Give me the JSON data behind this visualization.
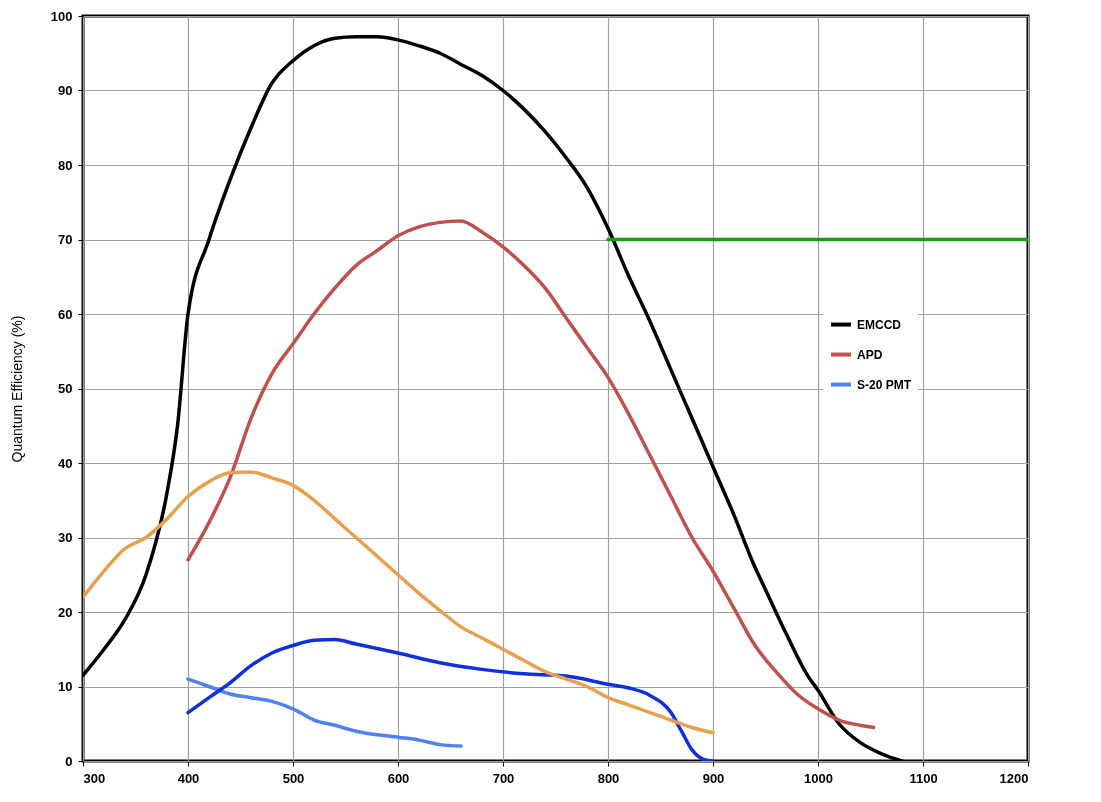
{
  "chart_data": {
    "type": "line",
    "ylabel": "Quantum Efficiency (%)",
    "xlim": [
      300,
      1200
    ],
    "xticks": [
      300,
      400,
      500,
      600,
      700,
      800,
      900,
      1000,
      1100,
      1200
    ],
    "ylim": [
      0,
      100
    ],
    "yticks": [
      0,
      10,
      20,
      30,
      40,
      50,
      60,
      70,
      80,
      90,
      100
    ],
    "grid": true,
    "legend": "right",
    "series": [
      {
        "name": "EMCCD",
        "color": "#000000",
        "x": [
          300,
          320,
          340,
          360,
          380,
          390,
          400,
          420,
          440,
          460,
          480,
          500,
          520,
          540,
          560,
          580,
          600,
          620,
          640,
          660,
          680,
          700,
          720,
          740,
          760,
          780,
          800,
          820,
          840,
          860,
          880,
          900,
          920,
          940,
          950,
          970,
          990,
          1000,
          1020,
          1040,
          1060,
          1080
        ],
        "values": [
          11.5,
          15,
          19,
          25,
          36,
          45,
          60,
          70,
          78,
          85,
          91,
          94,
          96,
          97,
          97.2,
          97.2,
          96.8,
          96,
          95,
          93.5,
          92,
          90,
          87.5,
          84.5,
          81,
          77,
          71.5,
          65,
          59,
          52.5,
          46,
          39.5,
          33,
          26,
          23,
          17,
          11.5,
          9.5,
          5,
          2.5,
          1,
          0
        ]
      },
      {
        "name": "APD",
        "color": "#c0504d",
        "x": [
          400,
          420,
          440,
          460,
          480,
          500,
          520,
          540,
          560,
          580,
          600,
          620,
          640,
          660,
          680,
          700,
          720,
          740,
          760,
          780,
          800,
          820,
          840,
          860,
          880,
          900,
          920,
          940,
          960,
          980,
          1000,
          1020,
          1040,
          1053
        ],
        "values": [
          27,
          32,
          38,
          46,
          52,
          56,
          60,
          63.5,
          66.5,
          68.5,
          70.5,
          71.7,
          72.3,
          72.5,
          71,
          69,
          66.5,
          63.5,
          59.5,
          55.5,
          51.5,
          46.5,
          41,
          35.5,
          30,
          25.5,
          20.5,
          15.5,
          12,
          9,
          7,
          5.5,
          4.8,
          4.5
        ]
      },
      {
        "color": "#1a9a1a",
        "x": [
          800,
          1200
        ],
        "values": [
          70,
          70
        ]
      },
      {
        "name": "S-20 PMT",
        "color": "#4f81f0",
        "x": [
          400,
          420,
          440,
          460,
          480,
          500,
          520,
          540,
          560,
          600,
          620,
          640,
          660
        ],
        "values": [
          11,
          10,
          9,
          8.5,
          8,
          7,
          5.5,
          4.8,
          4,
          3.2,
          2.8,
          2.2,
          2
        ]
      },
      {
        "color": "#1030e0",
        "x": [
          400,
          420,
          440,
          460,
          480,
          500,
          520,
          540,
          560,
          600,
          640,
          680,
          720,
          760,
          800,
          820,
          840,
          860,
          870,
          880,
          890,
          900
        ],
        "values": [
          6.5,
          8.5,
          10.5,
          12.8,
          14.5,
          15.5,
          16.2,
          16.3,
          15.7,
          14.5,
          13.2,
          12.3,
          11.7,
          11.4,
          10.3,
          9.8,
          8.8,
          6.5,
          4,
          1.5,
          0.3,
          0
        ]
      },
      {
        "color": "#e8a050",
        "x": [
          300,
          320,
          340,
          360,
          380,
          400,
          420,
          440,
          460,
          480,
          500,
          520,
          540,
          560,
          580,
          600,
          620,
          640,
          660,
          680,
          700,
          720,
          740,
          760,
          780,
          800,
          820,
          840,
          860,
          880,
          900
        ],
        "values": [
          22,
          25.5,
          28.5,
          30,
          32.5,
          35.5,
          37.5,
          38.7,
          38.8,
          38,
          37,
          35,
          32.5,
          30,
          27.5,
          25,
          22.5,
          20.2,
          18,
          16.5,
          15,
          13.5,
          12,
          11,
          10,
          8.5,
          7.5,
          6.5,
          5.5,
          4.5,
          3.8
        ]
      }
    ]
  }
}
